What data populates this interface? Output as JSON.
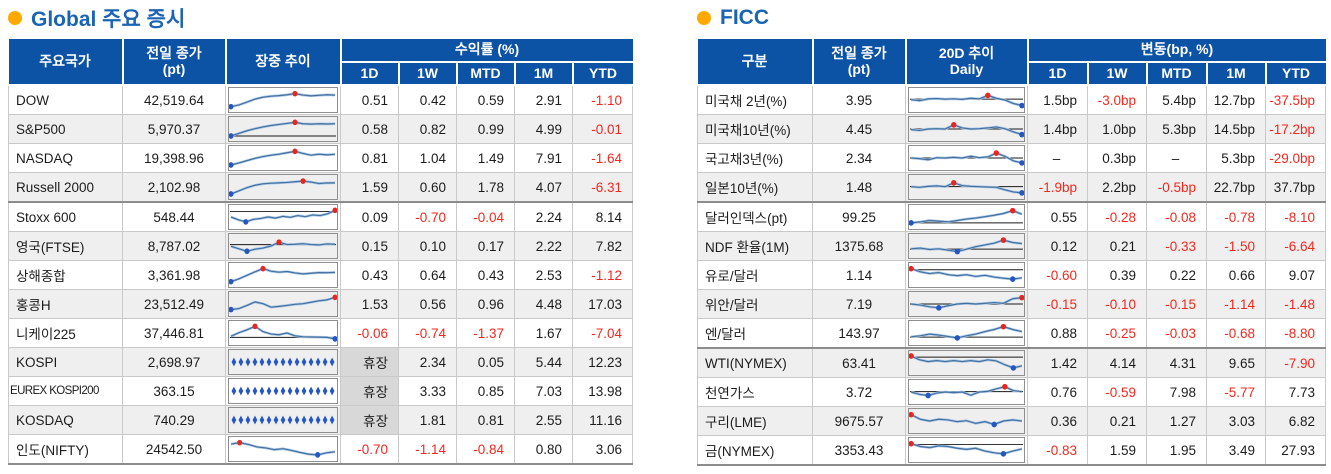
{
  "colors": {
    "header_bg": "#0d53a5",
    "header_text": "#ffffff",
    "title": "#1a64b4",
    "bullet": "#ffa800",
    "negative": "#f2281e",
    "text": "#1c1c1c",
    "stripe": "#efefef",
    "closed_bg": "#d8d8d8",
    "grid": "#c9c9c9",
    "group_line": "#8c8c8c",
    "spark_box": "#8f8f8f",
    "spark_light": "#aac7e8",
    "spark_dark": "#44709d",
    "dot_max": "#e8251f",
    "dot_min": "#2457c5",
    "ref_line": "#1a1a1a"
  },
  "left": {
    "title": "Global 주요 증시",
    "header": {
      "col1": "주요국가",
      "col2": [
        "전일 종가",
        "(pt)"
      ],
      "col3": [
        "장중 추이"
      ],
      "group": "수익률 (%)",
      "periods": [
        "1D",
        "1W",
        "MTD",
        "1M",
        "YTD"
      ]
    },
    "seps": [
      4
    ],
    "rows": [
      {
        "name": "DOW",
        "close": "42,519.64",
        "vals": [
          "0.51",
          "0.42",
          "0.59",
          "2.91",
          "-1.10"
        ],
        "spark": {
          "v": [
            0.12,
            0.22,
            0.38,
            0.55,
            0.66,
            0.72,
            0.75,
            0.8,
            0.86,
            0.78,
            0.74,
            0.77,
            0.8,
            0.78
          ],
          "ref": null
        }
      },
      {
        "name": "S&P500",
        "close": "5,970.37",
        "vals": [
          "0.58",
          "0.82",
          "0.99",
          "4.99",
          "-0.01"
        ],
        "spark": {
          "v": [
            0.1,
            0.25,
            0.4,
            0.52,
            0.62,
            0.7,
            0.76,
            0.82,
            0.88,
            0.8,
            0.78,
            0.8,
            0.79,
            0.8
          ],
          "ref": 0.1
        }
      },
      {
        "name": "NASDAQ",
        "close": "19,398.96",
        "vals": [
          "0.81",
          "1.04",
          "1.49",
          "7.91",
          "-1.64"
        ],
        "spark": {
          "v": [
            0.1,
            0.22,
            0.35,
            0.48,
            0.58,
            0.66,
            0.72,
            0.8,
            0.88,
            0.76,
            0.66,
            0.72,
            0.68,
            0.71
          ],
          "ref": null
        }
      },
      {
        "name": "Russell 2000",
        "close": "2,102.98",
        "vals": [
          "1.59",
          "0.60",
          "1.78",
          "4.07",
          "-6.31"
        ],
        "spark": {
          "v": [
            0.1,
            0.28,
            0.46,
            0.6,
            0.68,
            0.72,
            0.74,
            0.76,
            0.8,
            0.84,
            0.78,
            0.7,
            0.73,
            0.74
          ],
          "ref": null
        }
      },
      {
        "name": "Stoxx 600",
        "close": "548.44",
        "vals": [
          "0.09",
          "-0.70",
          "-0.04",
          "2.24",
          "8.14"
        ],
        "spark": {
          "v": [
            0.5,
            0.34,
            0.22,
            0.36,
            0.42,
            0.5,
            0.44,
            0.54,
            0.48,
            0.58,
            0.52,
            0.62,
            0.58,
            0.68,
            0.88
          ],
          "ref": 0.82
        }
      },
      {
        "name": "영국(FTSE)",
        "close": "8,787.02",
        "vals": [
          "0.15",
          "0.10",
          "0.17",
          "2.22",
          "7.82"
        ],
        "spark": {
          "v": [
            0.48,
            0.34,
            0.2,
            0.32,
            0.38,
            0.5,
            0.72,
            0.58,
            0.6,
            0.63,
            0.58,
            0.56,
            0.62,
            0.6
          ],
          "ref": 0.58
        }
      },
      {
        "name": "상해종합",
        "close": "3,361.98",
        "vals": [
          "0.43",
          "0.64",
          "0.43",
          "2.53",
          "-1.12"
        ],
        "spark": {
          "v": [
            0.12,
            0.28,
            0.48,
            0.68,
            0.86,
            0.72,
            0.66,
            0.7,
            0.62,
            0.56,
            0.6,
            0.64,
            0.63,
            0.65
          ],
          "ref": null
        }
      },
      {
        "name": "홍콩H",
        "close": "23,512.49",
        "vals": [
          "1.53",
          "0.56",
          "0.96",
          "4.48",
          "17.03"
        ],
        "spark": {
          "v": [
            0.18,
            0.24,
            0.42,
            0.62,
            0.52,
            0.32,
            0.36,
            0.42,
            0.48,
            0.52,
            0.6,
            0.68,
            0.74,
            0.88
          ],
          "ref": null
        }
      },
      {
        "name": "니케이225",
        "close": "37,446.81",
        "vals": [
          "-0.06",
          "-0.74",
          "-1.37",
          "1.67",
          "-7.04"
        ],
        "spark": {
          "v": [
            0.32,
            0.52,
            0.68,
            0.88,
            0.58,
            0.44,
            0.4,
            0.5,
            0.34,
            0.28,
            0.27,
            0.26,
            0.25,
            0.16
          ],
          "ref": 0.25
        }
      },
      {
        "name": "KOSPI",
        "close": "2,698.97",
        "vals": [
          "휴장",
          "2.34",
          "0.05",
          "5.44",
          "12.23"
        ],
        "spark": {
          "type": "dots"
        }
      },
      {
        "name": "EUREX KOSPI200",
        "close": "363.15",
        "vals": [
          "휴장",
          "3.33",
          "0.85",
          "7.03",
          "13.98"
        ],
        "spark": {
          "type": "dots"
        }
      },
      {
        "name": "KOSDAQ",
        "close": "740.29",
        "vals": [
          "휴장",
          "1.81",
          "0.81",
          "2.55",
          "11.16"
        ],
        "spark": {
          "type": "dots"
        }
      },
      {
        "name": "인도(NIFTY)",
        "close": "24542.50",
        "vals": [
          "-0.70",
          "-1.14",
          "-0.84",
          "0.80",
          "3.06"
        ],
        "spark": {
          "v": [
            0.78,
            0.86,
            0.76,
            0.62,
            0.56,
            0.46,
            0.52,
            0.42,
            0.3,
            0.2,
            0.16,
            0.28,
            0.34
          ],
          "ref": null
        }
      }
    ]
  },
  "right": {
    "title": "FICC",
    "header": {
      "col1": "구분",
      "col2": [
        "전일 종가",
        "(pt)"
      ],
      "col3": [
        "20D 추이",
        "Daily"
      ],
      "group": "변동(bp, %)",
      "periods": [
        "1D",
        "1W",
        "MTD",
        "1M",
        "YTD"
      ]
    },
    "seps": [
      4,
      9
    ],
    "rows": [
      {
        "name": "미국채 2년(%)",
        "close": "3.95",
        "vals": [
          "1.5bp",
          "-3.0bp",
          "5.4bp",
          "12.7bp",
          "-37.5bp"
        ],
        "spark": {
          "v": [
            0.52,
            0.46,
            0.56,
            0.58,
            0.55,
            0.57,
            0.54,
            0.6,
            0.56,
            0.76,
            0.6,
            0.5,
            0.3,
            0.18
          ],
          "ref": 0.55
        }
      },
      {
        "name": "미국채10년(%)",
        "close": "4.45",
        "vals": [
          "1.4bp",
          "1.0bp",
          "5.3bp",
          "14.5bp",
          "-17.2bp"
        ],
        "spark": {
          "v": [
            0.46,
            0.42,
            0.5,
            0.52,
            0.5,
            0.74,
            0.56,
            0.5,
            0.52,
            0.56,
            0.62,
            0.52,
            0.34,
            0.18
          ],
          "ref": 0.5
        }
      },
      {
        "name": "국고채3년(%)",
        "close": "2.34",
        "vals": [
          "–",
          "0.3bp",
          "–",
          "5.3bp",
          "-29.0bp"
        ],
        "spark": {
          "v": [
            0.5,
            0.46,
            0.4,
            0.52,
            0.5,
            0.54,
            0.5,
            0.6,
            0.52,
            0.56,
            0.78,
            0.6,
            0.34,
            0.22
          ],
          "ref": 0.5
        }
      },
      {
        "name": "일본10년(%)",
        "close": "1.48",
        "vals": [
          "-1.9bp",
          "2.2bp",
          "-0.5bp",
          "22.7bp",
          "37.7bp"
        ],
        "spark": {
          "v": [
            0.52,
            0.48,
            0.54,
            0.56,
            0.52,
            0.74,
            0.58,
            0.54,
            0.52,
            0.5,
            0.48,
            0.34,
            0.22,
            0.16
          ],
          "ref": 0.52
        }
      },
      {
        "name": "달러인덱스(pt)",
        "close": "99.25",
        "vals": [
          "0.55",
          "-0.28",
          "-0.08",
          "-0.78",
          "-8.10"
        ],
        "spark": {
          "v": [
            0.16,
            0.22,
            0.3,
            0.26,
            0.22,
            0.3,
            0.38,
            0.44,
            0.52,
            0.6,
            0.7,
            0.86,
            0.66
          ],
          "ref": 0.16
        }
      },
      {
        "name": "NDF 환율(1M)",
        "close": "1375.68",
        "vals": [
          "0.12",
          "0.21",
          "-0.33",
          "-1.50",
          "-6.64"
        ],
        "spark": {
          "v": [
            0.34,
            0.38,
            0.3,
            0.34,
            0.26,
            0.18,
            0.32,
            0.46,
            0.56,
            0.66,
            0.84,
            0.7,
            0.64
          ],
          "ref": 0.32
        }
      },
      {
        "name": "유로/달러",
        "close": "1.14",
        "vals": [
          "-0.60",
          "0.39",
          "0.22",
          "0.66",
          "9.07"
        ],
        "spark": {
          "v": [
            0.86,
            0.68,
            0.58,
            0.64,
            0.52,
            0.46,
            0.52,
            0.42,
            0.48,
            0.38,
            0.32,
            0.26,
            0.34
          ],
          "ref": 0.8
        }
      },
      {
        "name": "위안/달러",
        "close": "7.19",
        "vals": [
          "-0.15",
          "-0.10",
          "-0.15",
          "-1.14",
          "-1.48"
        ],
        "spark": {
          "v": [
            0.5,
            0.44,
            0.34,
            0.28,
            0.4,
            0.5,
            0.54,
            0.5,
            0.54,
            0.58,
            0.54,
            0.8,
            0.86
          ],
          "ref": 0.5
        }
      },
      {
        "name": "엔/달러",
        "close": "143.97",
        "vals": [
          "0.88",
          "-0.25",
          "-0.03",
          "-0.68",
          "-8.80"
        ],
        "spark": {
          "v": [
            0.28,
            0.34,
            0.44,
            0.38,
            0.3,
            0.22,
            0.34,
            0.44,
            0.58,
            0.7,
            0.86,
            0.7,
            0.58
          ],
          "ref": 0.26
        }
      },
      {
        "name": "WTI(NYMEX)",
        "close": "63.41",
        "vals": [
          "1.42",
          "4.14",
          "4.31",
          "9.65",
          "-7.90"
        ],
        "spark": {
          "v": [
            0.9,
            0.68,
            0.58,
            0.64,
            0.58,
            0.64,
            0.58,
            0.64,
            0.58,
            0.68,
            0.62,
            0.4,
            0.22,
            0.34
          ],
          "ref": 0.84
        }
      },
      {
        "name": "천연가스",
        "close": "3.72",
        "vals": [
          "0.76",
          "-0.59",
          "7.98",
          "-5.77",
          "7.73"
        ],
        "spark": {
          "v": [
            0.5,
            0.36,
            0.3,
            0.44,
            0.5,
            0.46,
            0.5,
            0.31,
            0.5,
            0.54,
            0.68,
            0.8,
            0.58,
            0.52
          ],
          "ref": 0.52
        }
      },
      {
        "name": "구리(LME)",
        "close": "9675.57",
        "vals": [
          "0.36",
          "0.21",
          "1.27",
          "3.03",
          "6.82"
        ],
        "spark": {
          "v": [
            0.86,
            0.6,
            0.5,
            0.6,
            0.56,
            0.46,
            0.52,
            0.36,
            0.46,
            0.3,
            0.5,
            0.56,
            0.5
          ],
          "ref": null
        }
      },
      {
        "name": "금(NYMEX)",
        "close": "3353.43",
        "vals": [
          "-0.83",
          "1.59",
          "1.95",
          "3.49",
          "27.93"
        ],
        "spark": {
          "v": [
            0.86,
            0.7,
            0.64,
            0.74,
            0.7,
            0.6,
            0.54,
            0.6,
            0.44,
            0.34,
            0.28,
            0.44,
            0.56
          ],
          "ref": 0.82
        }
      }
    ]
  }
}
